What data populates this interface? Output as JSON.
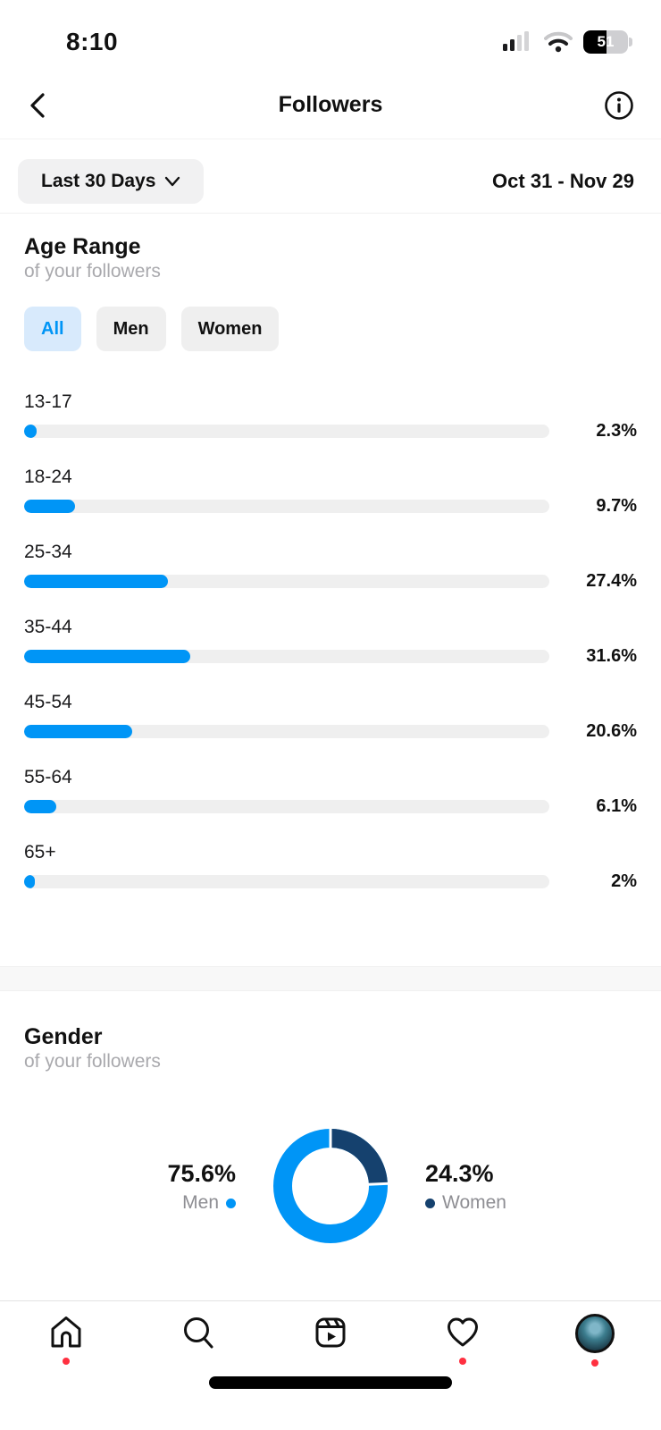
{
  "status_bar": {
    "time": "8:10",
    "battery_percent": "51",
    "battery_level": 51
  },
  "header": {
    "title": "Followers",
    "back_icon": "chevron-left-icon",
    "info_icon": "info-circle-icon"
  },
  "filter": {
    "range_label": "Last 30 Days",
    "dropdown_icon": "chevron-down-icon",
    "date_range": "Oct 31 - Nov 29"
  },
  "age_section": {
    "title": "Age Range",
    "subtitle": "of your followers",
    "tabs": [
      {
        "label": "All",
        "selected": true
      },
      {
        "label": "Men",
        "selected": false
      },
      {
        "label": "Women",
        "selected": false
      }
    ]
  },
  "gender_section": {
    "title": "Gender",
    "subtitle": "of your followers"
  },
  "chart_data": [
    {
      "type": "bar",
      "title": "Age Range of your followers",
      "orientation": "horizontal",
      "categories": [
        "13-17",
        "18-24",
        "25-34",
        "35-44",
        "45-54",
        "55-64",
        "65+"
      ],
      "values": [
        2.3,
        9.7,
        27.4,
        31.6,
        20.6,
        6.1,
        2
      ],
      "value_labels": [
        "2.3%",
        "9.7%",
        "27.4%",
        "31.6%",
        "20.6%",
        "6.1%",
        "2%"
      ],
      "xlim": [
        0,
        100
      ],
      "bar_color": "#0095f6",
      "track_color": "#efefef"
    },
    {
      "type": "pie",
      "title": "Gender of your followers",
      "donut": true,
      "slices": [
        {
          "label": "Men",
          "value": 75.6,
          "display": "75.6%",
          "color": "#0095f6"
        },
        {
          "label": "Women",
          "value": 24.3,
          "display": "24.3%",
          "color": "#15416e"
        }
      ]
    }
  ],
  "nav": {
    "items": [
      {
        "name": "home",
        "badge": true
      },
      {
        "name": "search",
        "badge": false
      },
      {
        "name": "reels",
        "badge": false
      },
      {
        "name": "activity",
        "badge": true
      },
      {
        "name": "profile",
        "badge": true
      }
    ]
  },
  "colors": {
    "accent_blue": "#0095f6",
    "navy": "#15416e",
    "tab_selected_bg": "#d8eafc",
    "track_gray": "#efefef",
    "muted_text": "#a9a9ad",
    "badge_red": "#ff3040"
  }
}
